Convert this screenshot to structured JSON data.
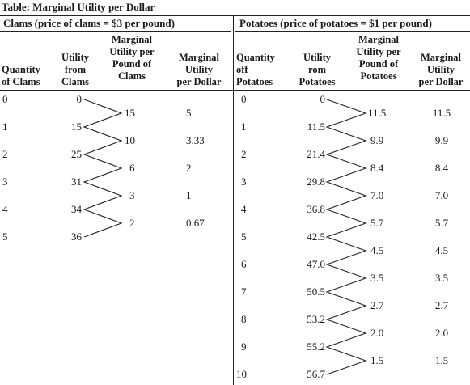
{
  "table": {
    "title": "Table: Marginal Utility per Dollar",
    "clams": {
      "group_header": "Clams (price of clams = $3 per pound)",
      "headers": [
        "Quantity\nof Clams",
        "Utility\nfrom\nClams",
        "Marginal\nUtility per\nPound of\nClams",
        "Marginal\nUtility\nper Dollar"
      ],
      "quantity": [
        "0",
        "1",
        "2",
        "3",
        "4",
        "5"
      ],
      "utility": [
        "0",
        "15",
        "25",
        "31",
        "34",
        "36"
      ],
      "mu_per_pound": [
        "15",
        "10",
        "6",
        "3",
        "2"
      ],
      "mu_per_dollar": [
        "5",
        "3.33",
        "2",
        "1",
        "0.67"
      ]
    },
    "potatoes": {
      "group_header": "Potatoes (price of potatoes = $1 per pound)",
      "headers": [
        "Quantity\noff\nPotatoes",
        "Utility\nrom\nPotatoes",
        "Marginal\nUtility per\nPound of\nPotatoes",
        "Marginal\nUtility\nper Dollar"
      ],
      "quantity": [
        "0",
        "1",
        "2",
        "3",
        "4",
        "5",
        "6",
        "7",
        "8",
        "9",
        "10"
      ],
      "utility": [
        "0",
        "11.5",
        "21.4",
        "29.8",
        "36.8",
        "42.5",
        "47.0",
        "50.5",
        "53.2",
        "55.2",
        "56.7"
      ],
      "mu_per_pound": [
        "11.5",
        "9.9",
        "8.4",
        "7.0",
        "5.7",
        "4.5",
        "3.5",
        "2.7",
        "2.0",
        "1.5"
      ],
      "mu_per_dollar": [
        "11.5",
        "9.9",
        "8.4",
        "7.0",
        "5.7",
        "4.5",
        "3.5",
        "2.7",
        "2.0",
        "1.5"
      ]
    }
  }
}
